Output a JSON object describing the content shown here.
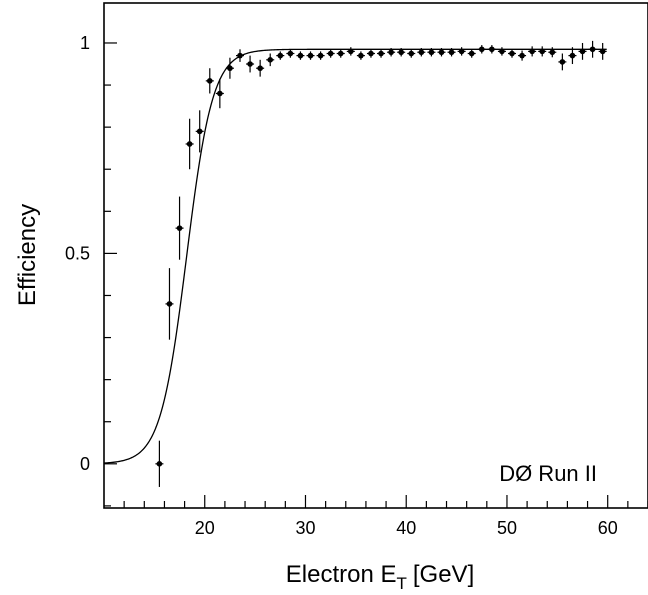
{
  "chart_data": {
    "type": "scatter",
    "title": "",
    "xlabel": "Electron E",
    "xlabel_sub": "T",
    "xlabel_unit": "[GeV]",
    "ylabel": "Efficiency",
    "annotation": "DØ Run II",
    "xlim": [
      10,
      64
    ],
    "ylim": [
      -0.105,
      1.095
    ],
    "x_ticks": [
      20,
      30,
      40,
      50,
      60
    ],
    "y_ticks": [
      0,
      0.5,
      1
    ],
    "y_tick_labels": [
      "0",
      "0.5",
      "1"
    ],
    "grid": false,
    "fit_curve": {
      "shape": "sigmoid",
      "plateau": 0.985,
      "midpoint": 18.2,
      "width": 1.3
    },
    "series": [
      {
        "x": [
          15.5,
          16.5,
          17.5,
          18.5,
          19.5,
          20.5,
          21.5,
          22.5,
          23.5,
          24.5,
          25.5,
          26.5,
          27.5,
          28.5,
          29.5,
          30.5,
          31.5,
          32.5,
          33.5,
          34.5,
          35.5,
          36.5,
          37.5,
          38.5,
          39.5,
          40.5,
          41.5,
          42.5,
          43.5,
          44.5,
          45.5,
          46.5,
          47.5,
          48.5,
          49.5,
          50.5,
          51.5,
          52.5,
          53.5,
          54.5,
          55.5,
          56.5,
          57.5,
          58.5,
          59.5
        ],
        "y": [
          0.0,
          0.38,
          0.56,
          0.76,
          0.79,
          0.91,
          0.88,
          0.94,
          0.97,
          0.95,
          0.94,
          0.96,
          0.97,
          0.975,
          0.97,
          0.97,
          0.97,
          0.975,
          0.975,
          0.98,
          0.97,
          0.975,
          0.975,
          0.978,
          0.978,
          0.975,
          0.978,
          0.978,
          0.978,
          0.978,
          0.98,
          0.975,
          0.985,
          0.985,
          0.98,
          0.975,
          0.97,
          0.98,
          0.98,
          0.978,
          0.955,
          0.97,
          0.98,
          0.985,
          0.98
        ],
        "err": [
          0.055,
          0.085,
          0.075,
          0.06,
          0.05,
          0.03,
          0.035,
          0.025,
          0.015,
          0.02,
          0.02,
          0.015,
          0.01,
          0.01,
          0.01,
          0.01,
          0.01,
          0.01,
          0.01,
          0.01,
          0.01,
          0.01,
          0.01,
          0.01,
          0.01,
          0.01,
          0.01,
          0.01,
          0.01,
          0.01,
          0.01,
          0.01,
          0.01,
          0.01,
          0.01,
          0.01,
          0.012,
          0.012,
          0.012,
          0.012,
          0.02,
          0.02,
          0.02,
          0.02,
          0.02
        ]
      }
    ]
  }
}
